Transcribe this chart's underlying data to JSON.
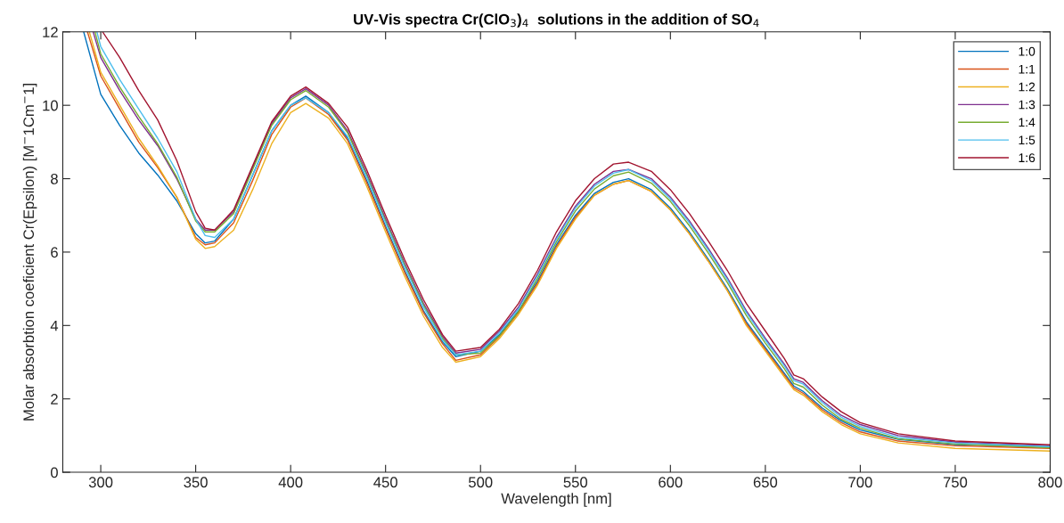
{
  "chart_data": {
    "type": "line",
    "title": "UV-Vis spectra Cr(ClO$_{3}$)$_{4}$  solutions in the addition of SO$_{4}$",
    "xlabel": "Wavelength [nm]",
    "ylabel": "Molar absorbtion coeficient Cr(Epsilon) [M$^{−}$1Cm$^{−}$1]",
    "xlim": [
      280,
      800
    ],
    "xticks": [
      300,
      350,
      400,
      450,
      500,
      550,
      600,
      650,
      700,
      750,
      800
    ],
    "ylim": [
      0,
      12
    ],
    "yticks": [
      0,
      2,
      4,
      6,
      8,
      10,
      12
    ],
    "grid": false,
    "legend": "top right",
    "marker": "none",
    "line_style": "solid",
    "series": [
      {
        "name": "1:0",
        "color": "#0072bd",
        "x": [
          291,
          300,
          310,
          320,
          330,
          340,
          350,
          355,
          360,
          370,
          380,
          390,
          400,
          408,
          420,
          430,
          440,
          450,
          460,
          470,
          480,
          487,
          500,
          510,
          520,
          530,
          540,
          550,
          560,
          570,
          578,
          590,
          600,
          610,
          620,
          630,
          640,
          650,
          660,
          665,
          670,
          680,
          690,
          700,
          720,
          750,
          800
        ],
        "values": [
          12,
          10.3,
          9.45,
          8.7,
          8.1,
          7.4,
          6.5,
          6.25,
          6.3,
          6.9,
          8.1,
          9.3,
          10.0,
          10.25,
          9.8,
          9.1,
          7.96,
          6.7,
          5.5,
          4.4,
          3.55,
          3.15,
          3.3,
          3.75,
          4.4,
          5.2,
          6.2,
          7.0,
          7.6,
          7.9,
          8.0,
          7.7,
          7.2,
          6.55,
          5.8,
          5.0,
          4.1,
          3.4,
          2.7,
          2.35,
          2.2,
          1.75,
          1.4,
          1.15,
          0.9,
          0.75,
          0.7
        ]
      },
      {
        "name": "1:1",
        "color": "#d95319",
        "x": [
          293,
          300,
          310,
          320,
          330,
          340,
          350,
          355,
          360,
          370,
          380,
          390,
          400,
          408,
          420,
          430,
          440,
          450,
          460,
          470,
          480,
          487,
          500,
          510,
          520,
          530,
          540,
          550,
          560,
          570,
          578,
          590,
          600,
          610,
          620,
          630,
          640,
          650,
          660,
          665,
          670,
          680,
          690,
          700,
          720,
          750,
          800
        ],
        "values": [
          12,
          10.8,
          9.9,
          9.0,
          8.3,
          7.5,
          6.4,
          6.2,
          6.25,
          6.8,
          7.95,
          9.2,
          9.95,
          10.2,
          9.75,
          9.05,
          7.9,
          6.65,
          5.45,
          4.35,
          3.5,
          3.05,
          3.2,
          3.7,
          4.35,
          5.15,
          6.15,
          6.95,
          7.55,
          7.85,
          7.95,
          7.65,
          7.15,
          6.5,
          5.75,
          4.95,
          4.05,
          3.35,
          2.65,
          2.3,
          2.15,
          1.7,
          1.35,
          1.1,
          0.85,
          0.72,
          0.65
        ]
      },
      {
        "name": "1:2",
        "color": "#edb120",
        "x": [
          294,
          300,
          310,
          320,
          330,
          340,
          350,
          355,
          360,
          370,
          380,
          390,
          400,
          408,
          420,
          430,
          440,
          450,
          460,
          470,
          480,
          487,
          500,
          510,
          520,
          530,
          540,
          550,
          560,
          570,
          578,
          590,
          600,
          610,
          620,
          630,
          640,
          650,
          660,
          665,
          670,
          680,
          690,
          700,
          720,
          750,
          800
        ],
        "values": [
          12,
          10.9,
          10.0,
          9.1,
          8.35,
          7.5,
          6.35,
          6.1,
          6.15,
          6.6,
          7.7,
          8.95,
          9.8,
          10.05,
          9.65,
          8.95,
          7.8,
          6.55,
          5.35,
          4.25,
          3.4,
          3.0,
          3.15,
          3.65,
          4.3,
          5.1,
          6.1,
          6.9,
          7.55,
          7.85,
          7.95,
          7.65,
          7.15,
          6.5,
          5.75,
          4.95,
          4.0,
          3.3,
          2.6,
          2.25,
          2.1,
          1.65,
          1.3,
          1.05,
          0.8,
          0.65,
          0.58
        ]
      },
      {
        "name": "1:3",
        "color": "#7e2f8e",
        "x": [
          296,
          300,
          310,
          320,
          330,
          340,
          350,
          355,
          360,
          370,
          380,
          390,
          400,
          408,
          420,
          430,
          440,
          450,
          460,
          470,
          480,
          487,
          500,
          510,
          520,
          530,
          540,
          550,
          560,
          570,
          578,
          590,
          600,
          610,
          620,
          630,
          640,
          650,
          660,
          665,
          670,
          680,
          690,
          700,
          720,
          750,
          800
        ],
        "values": [
          12,
          11.3,
          10.4,
          9.6,
          8.9,
          8.0,
          6.9,
          6.6,
          6.6,
          7.1,
          8.3,
          9.5,
          10.2,
          10.45,
          10.0,
          9.3,
          8.15,
          6.9,
          5.7,
          4.6,
          3.7,
          3.25,
          3.35,
          3.85,
          4.5,
          5.4,
          6.4,
          7.25,
          7.85,
          8.2,
          8.25,
          8.0,
          7.5,
          6.85,
          6.1,
          5.3,
          4.4,
          3.65,
          2.95,
          2.55,
          2.45,
          1.95,
          1.55,
          1.3,
          1.0,
          0.82,
          0.72
        ]
      },
      {
        "name": "1:4",
        "color": "#77ac30",
        "x": [
          297,
          300,
          310,
          320,
          330,
          340,
          350,
          355,
          360,
          370,
          380,
          390,
          400,
          408,
          420,
          430,
          440,
          450,
          460,
          470,
          480,
          487,
          500,
          510,
          520,
          530,
          540,
          550,
          560,
          570,
          578,
          590,
          600,
          610,
          620,
          630,
          640,
          650,
          660,
          665,
          670,
          680,
          690,
          700,
          720,
          750,
          800
        ],
        "values": [
          12,
          11.4,
          10.5,
          9.7,
          8.95,
          8.05,
          6.85,
          6.55,
          6.55,
          7.05,
          8.25,
          9.45,
          10.15,
          10.4,
          9.95,
          9.25,
          8.1,
          6.85,
          5.65,
          4.55,
          3.65,
          3.2,
          3.25,
          3.72,
          4.38,
          5.28,
          6.28,
          7.12,
          7.72,
          8.08,
          8.18,
          7.88,
          7.38,
          6.72,
          5.97,
          5.17,
          4.27,
          3.52,
          2.82,
          2.42,
          2.32,
          1.83,
          1.44,
          1.2,
          0.91,
          0.77,
          0.67
        ]
      },
      {
        "name": "1:5",
        "color": "#4dbeee",
        "x": [
          298,
          300,
          310,
          320,
          330,
          340,
          350,
          355,
          360,
          370,
          380,
          390,
          400,
          408,
          420,
          430,
          440,
          450,
          460,
          470,
          480,
          487,
          500,
          510,
          520,
          530,
          540,
          550,
          560,
          570,
          578,
          590,
          600,
          610,
          620,
          630,
          640,
          650,
          660,
          665,
          670,
          680,
          690,
          700,
          720,
          750,
          800
        ],
        "values": [
          12,
          11.6,
          10.7,
          9.9,
          9.1,
          8.2,
          6.9,
          6.45,
          6.4,
          6.9,
          8.1,
          9.3,
          10.0,
          10.2,
          9.8,
          9.15,
          8.05,
          6.8,
          5.6,
          4.5,
          3.6,
          3.2,
          3.3,
          3.8,
          4.45,
          5.35,
          6.35,
          7.2,
          7.8,
          8.15,
          8.25,
          7.95,
          7.45,
          6.8,
          6.05,
          5.25,
          4.35,
          3.6,
          2.9,
          2.5,
          2.4,
          1.9,
          1.5,
          1.25,
          0.95,
          0.8,
          0.7
        ]
      },
      {
        "name": "1:6",
        "color": "#a2142f",
        "x": [
          301,
          310,
          320,
          330,
          340,
          350,
          355,
          360,
          370,
          380,
          390,
          400,
          408,
          420,
          430,
          440,
          450,
          460,
          470,
          480,
          487,
          500,
          510,
          520,
          530,
          540,
          550,
          560,
          570,
          578,
          590,
          600,
          610,
          620,
          630,
          640,
          650,
          660,
          665,
          670,
          680,
          690,
          700,
          720,
          750,
          800
        ],
        "values": [
          12,
          11.3,
          10.4,
          9.6,
          8.5,
          7.1,
          6.65,
          6.6,
          7.15,
          8.35,
          9.55,
          10.25,
          10.5,
          10.05,
          9.4,
          8.25,
          7.0,
          5.8,
          4.7,
          3.75,
          3.3,
          3.4,
          3.9,
          4.6,
          5.5,
          6.55,
          7.4,
          8.0,
          8.4,
          8.45,
          8.2,
          7.7,
          7.05,
          6.3,
          5.5,
          4.6,
          3.85,
          3.1,
          2.65,
          2.55,
          2.05,
          1.65,
          1.35,
          1.05,
          0.85,
          0.75
        ]
      }
    ]
  }
}
